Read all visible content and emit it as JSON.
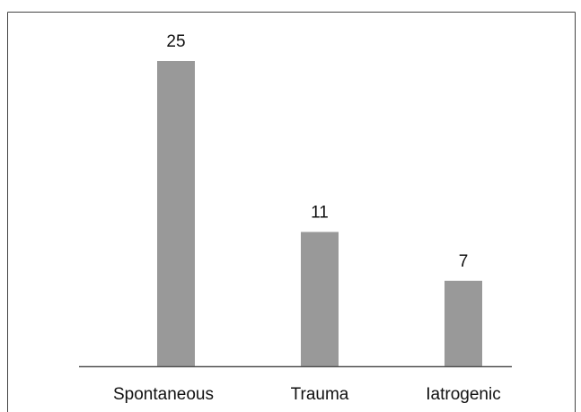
{
  "chart_data": {
    "type": "bar",
    "categories": [
      "Spontaneous",
      "Trauma",
      "Iatrogenic"
    ],
    "values": [
      25,
      11,
      7
    ],
    "color": "#999999"
  }
}
